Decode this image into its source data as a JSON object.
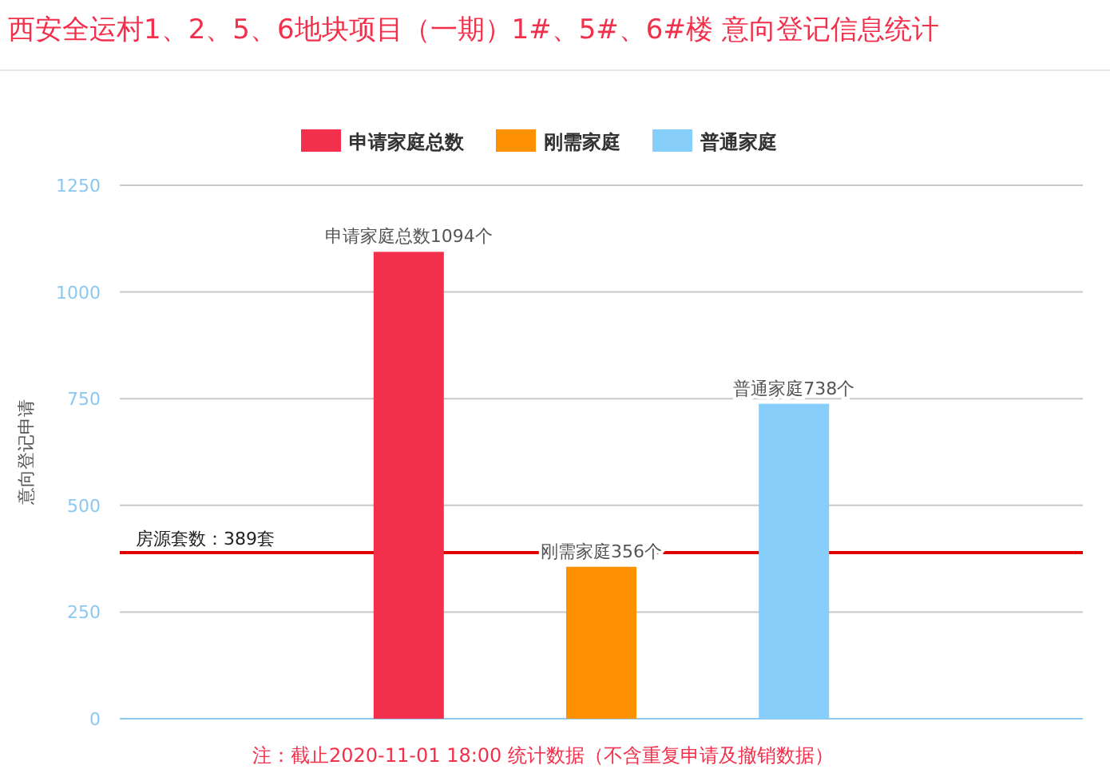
{
  "chart_data": {
    "type": "bar",
    "title": "西安全运村1、2、5、6地块项目（一期）1#、5#、6#楼 意向登记信息统计",
    "ylabel": "意向登记申请",
    "categories": [
      null
    ],
    "series": [
      {
        "name": "申请家庭总数",
        "color": "#f2304b",
        "values": [
          1094
        ],
        "value_labels": [
          "申请家庭总数1094个"
        ]
      },
      {
        "name": "刚需家庭",
        "color": "#fd9103",
        "values": [
          356
        ],
        "value_labels": [
          "刚需家庭356个"
        ]
      },
      {
        "name": "普通家庭",
        "color": "#87cefa",
        "values": [
          738
        ],
        "value_labels": [
          "普通家庭738个"
        ]
      }
    ],
    "ylim": [
      0,
      1250
    ],
    "yticks": [
      0,
      250,
      500,
      750,
      1000,
      1250
    ],
    "grid": "y",
    "legend": "top",
    "ref_lines": [
      {
        "axis": "y",
        "value": 389,
        "label": "房源套数：389套",
        "color": "#e00000"
      }
    ],
    "annotations": [
      "注：截止2020-11-01 18:00 统计数据（不含重复申请及撤销数据）"
    ]
  }
}
